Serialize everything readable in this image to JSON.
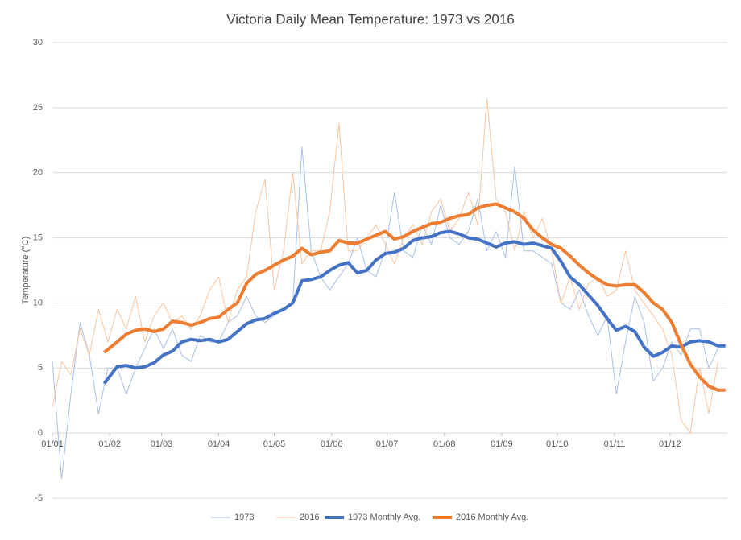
{
  "chart_data": {
    "type": "line",
    "title": "Victoria Daily Mean Temperature: 1973 vs 2016",
    "y_label": "Temperature (°C)",
    "xlim": [
      0,
      365
    ],
    "xticks": [
      {
        "value": 0,
        "label": "01/01"
      },
      {
        "value": 31,
        "label": "01/02"
      },
      {
        "value": 59,
        "label": "01/03"
      },
      {
        "value": 90,
        "label": "01/04"
      },
      {
        "value": 120,
        "label": "01/05"
      },
      {
        "value": 151,
        "label": "01/06"
      },
      {
        "value": 181,
        "label": "01/07"
      },
      {
        "value": 212,
        "label": "01/08"
      },
      {
        "value": 243,
        "label": "01/09"
      },
      {
        "value": 273,
        "label": "01/10"
      },
      {
        "value": 304,
        "label": "01/11"
      },
      {
        "value": 334,
        "label": "01/12"
      }
    ],
    "ylim": [
      -5,
      30
    ],
    "yticks": [
      -5,
      0,
      5,
      10,
      15,
      20,
      25,
      30
    ],
    "grid": true,
    "legend": "bottom",
    "series": [
      {
        "name": "1973",
        "color": "#a9bfe6",
        "x": [
          0,
          5,
          10,
          15,
          20,
          25,
          30,
          35,
          40,
          45,
          50,
          55,
          60,
          65,
          70,
          75,
          80,
          85,
          90,
          95,
          100,
          105,
          110,
          115,
          120,
          125,
          130,
          135,
          140,
          145,
          150,
          155,
          160,
          165,
          170,
          175,
          180,
          185,
          190,
          195,
          200,
          205,
          210,
          215,
          220,
          225,
          230,
          235,
          240,
          245,
          250,
          255,
          260,
          265,
          270,
          275,
          280,
          285,
          290,
          295,
          300,
          305,
          310,
          315,
          320,
          325,
          330,
          335,
          340,
          345,
          350,
          355,
          360
        ],
        "values": [
          5.5,
          -3.5,
          3,
          8.5,
          6,
          1.5,
          5,
          5,
          3,
          5,
          6.5,
          8,
          6.5,
          8,
          6,
          5.5,
          7.5,
          7,
          7,
          8.5,
          9,
          10.5,
          9,
          8.5,
          9,
          9.5,
          10,
          22,
          14,
          12,
          11,
          12,
          13,
          15,
          12.5,
          12,
          14,
          18.5,
          14,
          13.5,
          16,
          14.5,
          17.5,
          15,
          14.5,
          15.5,
          18,
          14,
          15.5,
          13.5,
          20.5,
          14,
          14,
          13.5,
          13,
          10,
          9.5,
          11,
          9,
          7.5,
          9,
          3,
          7,
          10.5,
          8.5,
          4,
          5,
          7,
          6,
          8,
          8,
          5,
          6.5
        ]
      },
      {
        "name": "2016",
        "color": "#f7c4a0",
        "x": [
          0,
          5,
          10,
          15,
          20,
          25,
          30,
          35,
          40,
          45,
          50,
          55,
          60,
          65,
          70,
          75,
          80,
          85,
          90,
          95,
          100,
          105,
          110,
          115,
          120,
          125,
          130,
          135,
          140,
          145,
          150,
          155,
          160,
          165,
          170,
          175,
          180,
          185,
          190,
          195,
          200,
          205,
          210,
          215,
          220,
          225,
          230,
          235,
          240,
          245,
          250,
          255,
          260,
          265,
          270,
          275,
          280,
          285,
          290,
          295,
          300,
          305,
          310,
          315,
          320,
          325,
          330,
          335,
          340,
          345,
          350,
          355,
          360
        ],
        "values": [
          2,
          5.5,
          4.5,
          8,
          6,
          9.5,
          7,
          9.5,
          8,
          10.5,
          7,
          9,
          10,
          8.5,
          9,
          8,
          9,
          11,
          12,
          8.5,
          11,
          12,
          17,
          19.5,
          11,
          14,
          20,
          13,
          14,
          14,
          17,
          23.8,
          14,
          14,
          15,
          16,
          14.5,
          13,
          15,
          16,
          14.5,
          17,
          18,
          15.5,
          16.5,
          18.5,
          16,
          25.7,
          18,
          17,
          14,
          17,
          15,
          16.5,
          14,
          10,
          12,
          9.5,
          11.5,
          12,
          10.5,
          11,
          14,
          11,
          10,
          9,
          8,
          6,
          1,
          0,
          5,
          1.5,
          5.5
        ]
      },
      {
        "name": "1973 Monthly Avg.",
        "color": "#4472c4",
        "x": [
          28,
          35,
          40,
          45,
          50,
          55,
          60,
          65,
          70,
          75,
          80,
          85,
          90,
          95,
          100,
          105,
          110,
          115,
          120,
          125,
          130,
          135,
          140,
          145,
          150,
          155,
          160,
          165,
          170,
          175,
          180,
          185,
          190,
          195,
          200,
          205,
          210,
          215,
          220,
          225,
          230,
          235,
          240,
          245,
          250,
          255,
          260,
          265,
          270,
          275,
          280,
          285,
          290,
          295,
          300,
          305,
          310,
          315,
          320,
          325,
          330,
          335,
          340,
          345,
          350,
          355,
          360,
          364
        ],
        "values": [
          3.8,
          5.1,
          5.2,
          5.0,
          5.1,
          5.4,
          6,
          6.3,
          7,
          7.2,
          7.1,
          7.2,
          7.0,
          7.2,
          7.8,
          8.4,
          8.7,
          8.8,
          9.2,
          9.5,
          10,
          11.7,
          11.8,
          12.0,
          12.5,
          12.9,
          13.1,
          12.3,
          12.5,
          13.3,
          13.8,
          13.9,
          14.2,
          14.8,
          15.0,
          15.1,
          15.4,
          15.5,
          15.3,
          15.0,
          14.9,
          14.6,
          14.3,
          14.6,
          14.7,
          14.5,
          14.6,
          14.4,
          14.2,
          13.2,
          12.0,
          11.4,
          10.6,
          9.8,
          8.8,
          7.9,
          8.2,
          7.8,
          6.6,
          5.9,
          6.2,
          6.7,
          6.6,
          7.0,
          7.1,
          7.0,
          6.7,
          6.7
        ]
      },
      {
        "name": "2016 Monthly Avg.",
        "color": "#ed7d31",
        "x": [
          28,
          35,
          40,
          45,
          50,
          55,
          60,
          65,
          70,
          75,
          80,
          85,
          90,
          95,
          100,
          105,
          110,
          115,
          120,
          125,
          130,
          135,
          140,
          145,
          150,
          155,
          160,
          165,
          170,
          175,
          180,
          185,
          190,
          195,
          200,
          205,
          210,
          215,
          220,
          225,
          230,
          235,
          240,
          245,
          250,
          255,
          260,
          265,
          270,
          275,
          280,
          285,
          290,
          295,
          300,
          305,
          310,
          315,
          320,
          325,
          330,
          335,
          340,
          345,
          350,
          355,
          360,
          364
        ],
        "values": [
          6.2,
          7.0,
          7.6,
          7.9,
          8.0,
          7.8,
          8.0,
          8.6,
          8.5,
          8.3,
          8.5,
          8.8,
          8.9,
          9.5,
          10.0,
          11.5,
          12.2,
          12.5,
          12.9,
          13.3,
          13.6,
          14.2,
          13.7,
          13.9,
          14.0,
          14.8,
          14.6,
          14.6,
          14.9,
          15.2,
          15.5,
          14.9,
          15.1,
          15.5,
          15.8,
          16.1,
          16.2,
          16.5,
          16.7,
          16.8,
          17.3,
          17.5,
          17.6,
          17.3,
          17.0,
          16.5,
          15.6,
          15.0,
          14.5,
          14.2,
          13.6,
          12.9,
          12.3,
          11.8,
          11.4,
          11.3,
          11.4,
          11.4,
          10.8,
          10.0,
          9.5,
          8.5,
          6.8,
          5.3,
          4.3,
          3.6,
          3.3,
          3.3
        ]
      }
    ]
  }
}
